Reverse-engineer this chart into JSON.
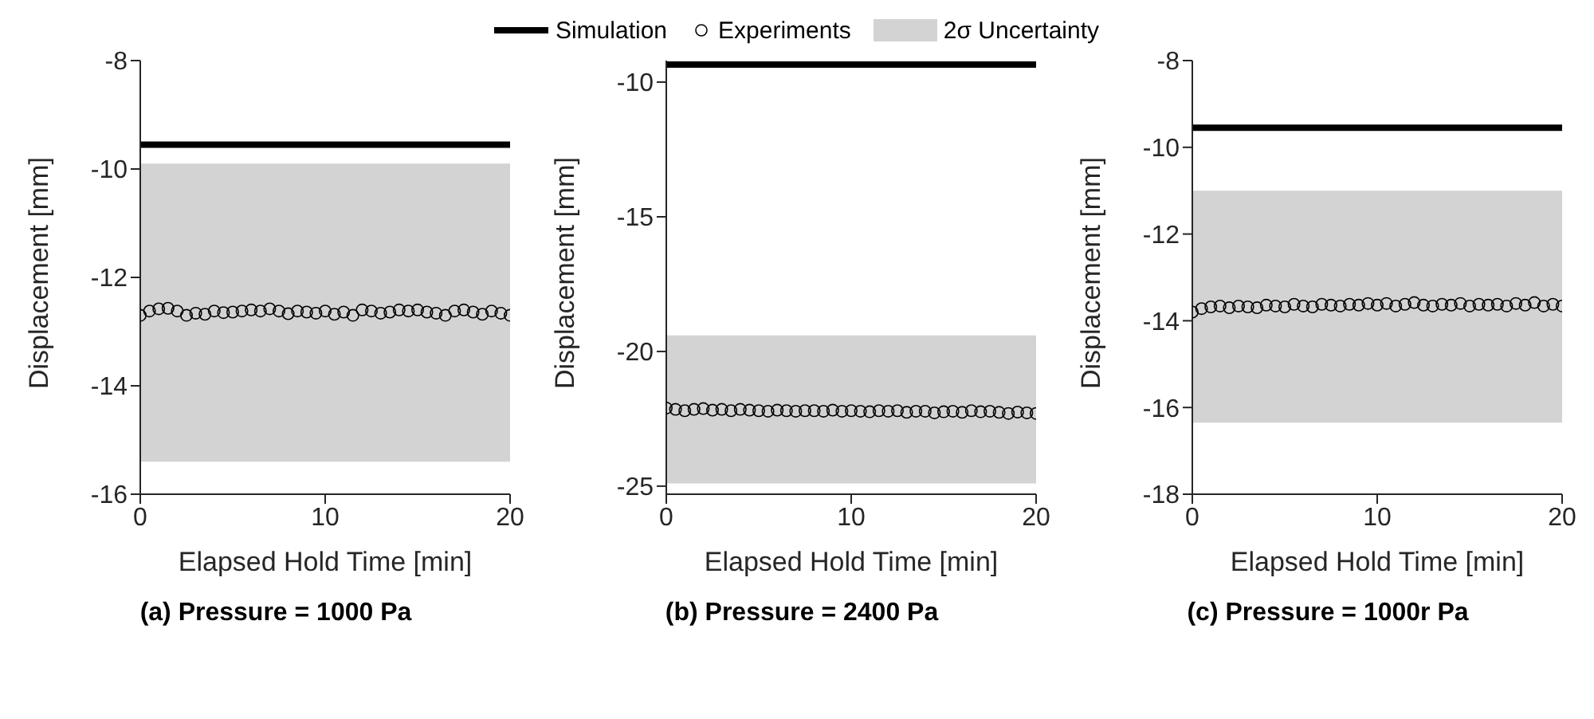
{
  "chart_data": [
    {
      "type": "line",
      "title": "(a) Pressure = 1000 Pa",
      "xlabel": "Elapsed Hold Time [min]",
      "ylabel": "Displacement [mm]",
      "xlim": [
        0,
        20
      ],
      "xticks": [
        0,
        10,
        20
      ],
      "ylim": [
        -16,
        -8
      ],
      "yticks": [
        -16,
        -14,
        -12,
        -10,
        -8
      ],
      "legend": "top",
      "series": [
        {
          "type": "line",
          "name": "Simulation",
          "color": "#000000",
          "x": [
            0,
            20
          ],
          "values": [
            -9.55,
            -9.55
          ]
        },
        {
          "type": "scatter",
          "name": "Experiments",
          "color": "#000000",
          "marker": "circle",
          "x": [
            0,
            0.5,
            1,
            1.5,
            2,
            2.5,
            3,
            3.5,
            4,
            4.5,
            5,
            5.5,
            6,
            6.5,
            7,
            7.5,
            8,
            8.5,
            9,
            9.5,
            10,
            10.5,
            11,
            11.5,
            12,
            12.5,
            13,
            13.5,
            14,
            14.5,
            15,
            15.5,
            16,
            16.5,
            17,
            17.5,
            18,
            18.5,
            19,
            19.5,
            20
          ],
          "values": [
            -12.7,
            -12.62,
            -12.58,
            -12.57,
            -12.62,
            -12.7,
            -12.66,
            -12.68,
            -12.62,
            -12.65,
            -12.64,
            -12.62,
            -12.6,
            -12.62,
            -12.58,
            -12.62,
            -12.67,
            -12.62,
            -12.64,
            -12.66,
            -12.62,
            -12.68,
            -12.64,
            -12.7,
            -12.6,
            -12.62,
            -12.66,
            -12.64,
            -12.6,
            -12.62,
            -12.6,
            -12.64,
            -12.66,
            -12.7,
            -12.62,
            -12.6,
            -12.64,
            -12.68,
            -12.62,
            -12.66,
            -12.7
          ]
        }
      ],
      "bands": [
        {
          "axis": "y",
          "from": -15.4,
          "to": -9.9,
          "label": "2σ Uncertainty",
          "color": "#d3d3d3"
        }
      ]
    },
    {
      "type": "line",
      "title": "(b) Pressure = 2400 Pa",
      "xlabel": "Elapsed Hold Time [min]",
      "ylabel": "Displacement [mm]",
      "xlim": [
        0,
        20
      ],
      "xticks": [
        0,
        10,
        20
      ],
      "ylim": [
        -25.3,
        -9.2
      ],
      "yticks": [
        -25,
        -20,
        -15,
        -10
      ],
      "series": [
        {
          "type": "line",
          "color": "#000000",
          "x": [
            0,
            20
          ],
          "values": [
            -9.35,
            -9.35
          ]
        },
        {
          "type": "scatter",
          "color": "#000000",
          "marker": "circle",
          "x": [
            0,
            0.5,
            1,
            1.5,
            2,
            2.5,
            3,
            3.5,
            4,
            4.5,
            5,
            5.5,
            6,
            6.5,
            7,
            7.5,
            8,
            8.5,
            9,
            9.5,
            10,
            10.5,
            11,
            11.5,
            12,
            12.5,
            13,
            13.5,
            14,
            14.5,
            15,
            15.5,
            16,
            16.5,
            17,
            17.5,
            18,
            18.5,
            19,
            19.5,
            20
          ],
          "values": [
            -22.1,
            -22.15,
            -22.2,
            -22.15,
            -22.12,
            -22.18,
            -22.15,
            -22.2,
            -22.15,
            -22.18,
            -22.2,
            -22.22,
            -22.18,
            -22.2,
            -22.22,
            -22.2,
            -22.2,
            -22.22,
            -22.18,
            -22.22,
            -22.2,
            -22.22,
            -22.24,
            -22.2,
            -22.22,
            -22.2,
            -22.26,
            -22.22,
            -22.22,
            -22.28,
            -22.24,
            -22.22,
            -22.26,
            -22.2,
            -22.24,
            -22.22,
            -22.26,
            -22.3,
            -22.25,
            -22.28,
            -22.3
          ]
        }
      ],
      "bands": [
        {
          "axis": "y",
          "from": -24.9,
          "to": -19.4,
          "color": "#d3d3d3"
        }
      ]
    },
    {
      "type": "line",
      "title": "(c) Pressure = 1000r Pa",
      "xlabel": "Elapsed Hold Time [min]",
      "ylabel": "Displacement [mm]",
      "xlim": [
        0,
        20
      ],
      "xticks": [
        0,
        10,
        20
      ],
      "ylim": [
        -18,
        -8
      ],
      "yticks": [
        -18,
        -16,
        -14,
        -12,
        -10,
        -8
      ],
      "series": [
        {
          "type": "line",
          "color": "#000000",
          "x": [
            0,
            20
          ],
          "values": [
            -9.55,
            -9.55
          ]
        },
        {
          "type": "scatter",
          "color": "#000000",
          "marker": "circle",
          "x": [
            0,
            0.5,
            1,
            1.5,
            2,
            2.5,
            3,
            3.5,
            4,
            4.5,
            5,
            5.5,
            6,
            6.5,
            7,
            7.5,
            8,
            8.5,
            9,
            9.5,
            10,
            10.5,
            11,
            11.5,
            12,
            12.5,
            13,
            13.5,
            14,
            14.5,
            15,
            15.5,
            16,
            16.5,
            17,
            17.5,
            18,
            18.5,
            19,
            19.5,
            20
          ],
          "values": [
            -13.8,
            -13.72,
            -13.68,
            -13.66,
            -13.7,
            -13.66,
            -13.68,
            -13.7,
            -13.64,
            -13.66,
            -13.68,
            -13.62,
            -13.66,
            -13.68,
            -13.62,
            -13.64,
            -13.66,
            -13.62,
            -13.64,
            -13.6,
            -13.64,
            -13.6,
            -13.66,
            -13.62,
            -13.58,
            -13.64,
            -13.66,
            -13.62,
            -13.64,
            -13.6,
            -13.66,
            -13.62,
            -13.64,
            -13.62,
            -13.66,
            -13.6,
            -13.64,
            -13.58,
            -13.66,
            -13.62,
            -13.66
          ]
        }
      ],
      "bands": [
        {
          "axis": "y",
          "from": -16.35,
          "to": -11,
          "color": "#d3d3d3"
        }
      ]
    }
  ]
}
